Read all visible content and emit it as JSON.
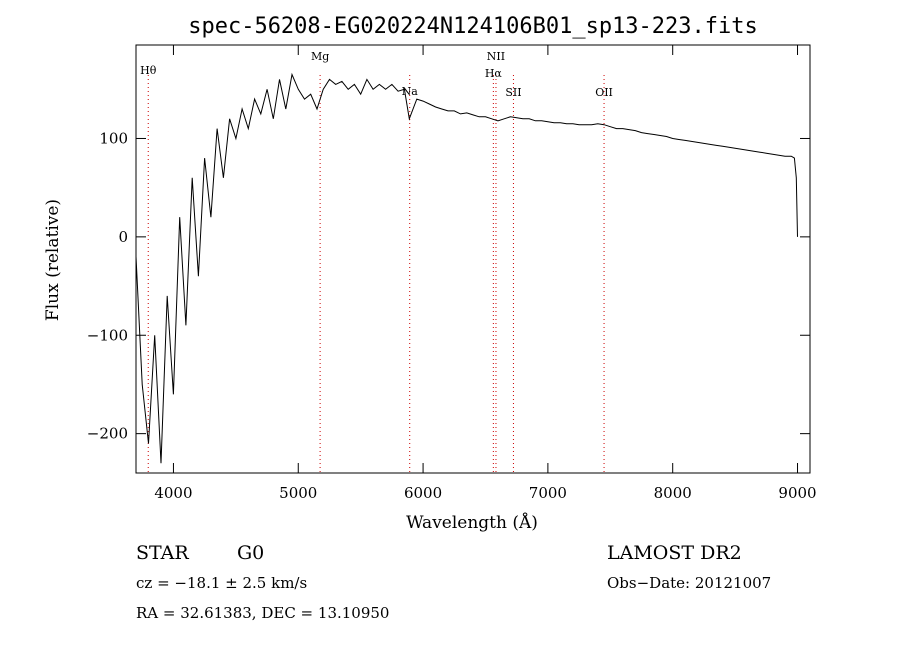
{
  "chart_data": {
    "type": "line",
    "title": "spec-56208-EG020224N124106B01_sp13-223.fits",
    "xlabel": "Wavelength (Å)",
    "ylabel": "Flux (relative)",
    "xlim": [
      3700,
      9100
    ],
    "ylim": [
      -240,
      195
    ],
    "xticks": [
      4000,
      5000,
      6000,
      7000,
      8000,
      9000
    ],
    "yticks": [
      -200,
      -100,
      0,
      100
    ],
    "grid": false,
    "line_color": "#000000",
    "marker_color": "#cc0000",
    "series": [
      {
        "x": [
          3700,
          3750,
          3800,
          3850,
          3900,
          3950,
          4000,
          4050,
          4100,
          4150,
          4200,
          4250,
          4300,
          4350,
          4400,
          4450,
          4500,
          4550,
          4600,
          4650,
          4700,
          4750,
          4800,
          4850,
          4900,
          4950,
          5000,
          5050,
          5100,
          5150,
          5200,
          5250,
          5300,
          5350,
          5400,
          5450,
          5500,
          5550,
          5600,
          5650,
          5700,
          5750,
          5800,
          5850,
          5890,
          5950,
          6000,
          6050,
          6100,
          6150,
          6200,
          6250,
          6300,
          6350,
          6400,
          6450,
          6500,
          6550,
          6600,
          6650,
          6700,
          6750,
          6800,
          6850,
          6900,
          6950,
          7000,
          7050,
          7100,
          7150,
          7200,
          7250,
          7300,
          7350,
          7400,
          7450,
          7500,
          7550,
          7600,
          7650,
          7700,
          7750,
          7800,
          7850,
          7900,
          7950,
          8000,
          8050,
          8100,
          8150,
          8200,
          8250,
          8300,
          8350,
          8400,
          8450,
          8500,
          8550,
          8600,
          8650,
          8700,
          8750,
          8800,
          8850,
          8900,
          8950,
          8975,
          8990,
          9000
        ],
        "values": [
          -20,
          -150,
          -210,
          -100,
          -230,
          -60,
          -160,
          20,
          -90,
          60,
          -40,
          80,
          20,
          110,
          60,
          120,
          100,
          130,
          110,
          140,
          125,
          150,
          120,
          160,
          130,
          165,
          150,
          140,
          145,
          130,
          150,
          160,
          155,
          158,
          150,
          155,
          145,
          160,
          150,
          155,
          150,
          155,
          148,
          150,
          120,
          140,
          138,
          135,
          132,
          130,
          128,
          128,
          125,
          126,
          124,
          122,
          122,
          120,
          118,
          120,
          122,
          121,
          120,
          120,
          118,
          118,
          117,
          116,
          116,
          115,
          115,
          114,
          114,
          114,
          115,
          114,
          112,
          110,
          110,
          109,
          108,
          106,
          105,
          104,
          103,
          102,
          100,
          99,
          98,
          97,
          96,
          95,
          94,
          93,
          92,
          91,
          90,
          89,
          88,
          87,
          86,
          85,
          84,
          83,
          82,
          82,
          80,
          60,
          0
        ]
      }
    ],
    "line_markers": [
      {
        "label": "Hθ",
        "x": 3798
      },
      {
        "label": "Mg",
        "x": 5175
      },
      {
        "label": "Na",
        "x": 5893
      },
      {
        "label": "NII",
        "x": 6584
      },
      {
        "label": "Hα",
        "x": 6563
      },
      {
        "label": "SII",
        "x": 6724
      },
      {
        "label": "OII",
        "x": 7450
      }
    ]
  },
  "info": {
    "object_class": "STAR",
    "subclass": "G0",
    "survey": "LAMOST DR2",
    "redshift": "cz = −18.1 ± 2.5 km/s",
    "obs_date": "Obs−Date: 20121007",
    "coords": "RA =  32.61383, DEC =  13.10950"
  }
}
